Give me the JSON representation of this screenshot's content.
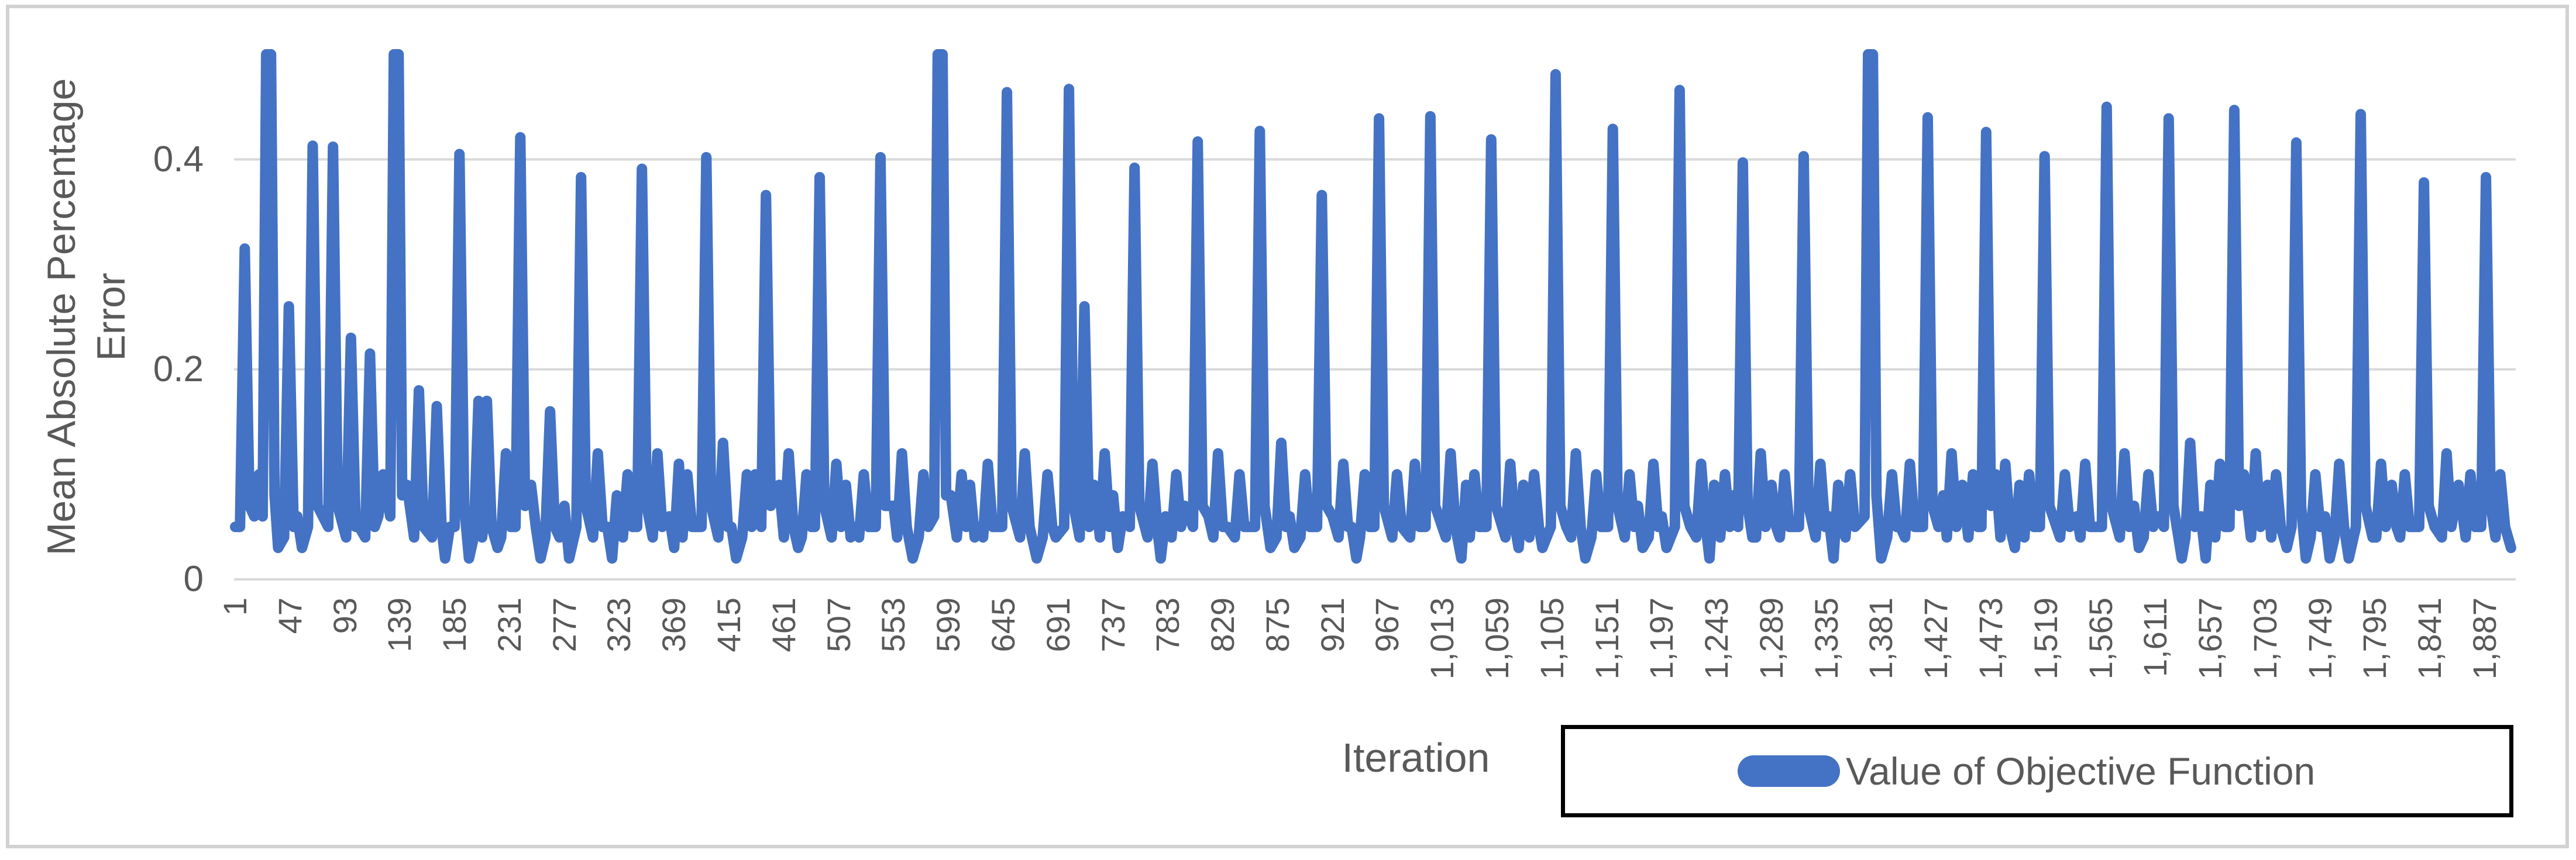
{
  "chart_data": {
    "type": "line",
    "title": "",
    "xlabel": "Iteration",
    "ylabel": "Mean Absolute Percentage Error",
    "ylabel_lines": [
      "Mean Absolute Percentage",
      "Error"
    ],
    "grid": true,
    "legend": {
      "position": "bottom-right",
      "border_color": "#000000",
      "entries": [
        {
          "label": "Value of Objective Function",
          "color": "#4472C4"
        }
      ]
    },
    "colors": {
      "series_blue": "#4472C4",
      "gridline": "#D9D9D9",
      "axis_text": "#595959",
      "frame_border": "#D2D2D2",
      "background": "#FFFFFF"
    },
    "y_axis": {
      "min": 0,
      "max": 0.5,
      "major_unit": 0.2,
      "tick_values": [
        0,
        0.2,
        0.4
      ],
      "tick_labels": [
        "0",
        "0.2",
        "0.4"
      ]
    },
    "x_axis": {
      "max_iteration": 1912,
      "tick_values": [
        1,
        47,
        93,
        139,
        185,
        231,
        277,
        323,
        369,
        415,
        461,
        507,
        553,
        599,
        645,
        691,
        737,
        783,
        829,
        875,
        921,
        967,
        1013,
        1059,
        1105,
        1151,
        1197,
        1243,
        1289,
        1335,
        1381,
        1427,
        1473,
        1519,
        1565,
        1611,
        1657,
        1703,
        1749,
        1795,
        1841,
        1887
      ],
      "tick_labels": [
        "1",
        "47",
        "93",
        "139",
        "185",
        "231",
        "277",
        "323",
        "369",
        "415",
        "461",
        "507",
        "553",
        "599",
        "645",
        "691",
        "737",
        "783",
        "829",
        "875",
        "921",
        "967",
        "1,013",
        "1,059",
        "1,105",
        "1,151",
        "1,197",
        "1,243",
        "1,289",
        "1,335",
        "1,381",
        "1,427",
        "1,473",
        "1,519",
        "1,565",
        "1,611",
        "1,657",
        "1,703",
        "1,749",
        "1,795",
        "1,841",
        "1,887"
      ]
    },
    "series": [
      {
        "name": "Value of Objective Function",
        "color": "#4472C4",
        "clip_max": 0.5,
        "spikes": [
          [
            9,
            0.315
          ],
          [
            29,
            0.505
          ],
          [
            66,
            0.413
          ],
          [
            83,
            0.412
          ],
          [
            136,
            0.505
          ],
          [
            189,
            0.405
          ],
          [
            240,
            0.421
          ],
          [
            291,
            0.383
          ],
          [
            342,
            0.391
          ],
          [
            396,
            0.402
          ],
          [
            446,
            0.366
          ],
          [
            491,
            0.383
          ],
          [
            542,
            0.402
          ],
          [
            592,
            0.505
          ],
          [
            648,
            0.464
          ],
          [
            700,
            0.467
          ],
          [
            755,
            0.392
          ],
          [
            808,
            0.417
          ],
          [
            860,
            0.427
          ],
          [
            912,
            0.366
          ],
          [
            960,
            0.439
          ],
          [
            1003,
            0.441
          ],
          [
            1054,
            0.419
          ],
          [
            1108,
            0.481
          ],
          [
            1156,
            0.429
          ],
          [
            1212,
            0.466
          ],
          [
            1265,
            0.397
          ],
          [
            1316,
            0.403
          ],
          [
            1372,
            0.505
          ],
          [
            1420,
            0.44
          ],
          [
            1469,
            0.426
          ],
          [
            1518,
            0.403
          ],
          [
            1570,
            0.45
          ],
          [
            1622,
            0.439
          ],
          [
            1677,
            0.447
          ],
          [
            1729,
            0.416
          ],
          [
            1783,
            0.443
          ],
          [
            1836,
            0.378
          ],
          [
            1888,
            0.383
          ]
        ],
        "bumps": [
          [
            46,
            0.26
          ],
          [
            98,
            0.23
          ],
          [
            114,
            0.215
          ],
          [
            155,
            0.18
          ],
          [
            170,
            0.165
          ],
          [
            205,
            0.17
          ],
          [
            212,
            0.17
          ],
          [
            228,
            0.12
          ],
          [
            265,
            0.16
          ],
          [
            305,
            0.12
          ],
          [
            330,
            0.1
          ],
          [
            355,
            0.12
          ],
          [
            380,
            0.1
          ],
          [
            410,
            0.13
          ],
          [
            430,
            0.1
          ],
          [
            465,
            0.12
          ],
          [
            480,
            0.1
          ],
          [
            505,
            0.11
          ],
          [
            528,
            0.1
          ],
          [
            560,
            0.12
          ],
          [
            578,
            0.1
          ],
          [
            610,
            0.1
          ],
          [
            632,
            0.11
          ],
          [
            663,
            0.12
          ],
          [
            682,
            0.1
          ],
          [
            713,
            0.26
          ],
          [
            730,
            0.12
          ],
          [
            770,
            0.11
          ],
          [
            790,
            0.1
          ],
          [
            825,
            0.12
          ],
          [
            843,
            0.1
          ],
          [
            878,
            0.13
          ],
          [
            898,
            0.1
          ],
          [
            930,
            0.11
          ],
          [
            948,
            0.1
          ],
          [
            975,
            0.1
          ],
          [
            990,
            0.11
          ],
          [
            1020,
            0.12
          ],
          [
            1040,
            0.1
          ],
          [
            1070,
            0.11
          ],
          [
            1090,
            0.1
          ],
          [
            1125,
            0.12
          ],
          [
            1142,
            0.1
          ],
          [
            1170,
            0.1
          ],
          [
            1190,
            0.11
          ],
          [
            1230,
            0.11
          ],
          [
            1250,
            0.1
          ],
          [
            1280,
            0.12
          ],
          [
            1300,
            0.1
          ],
          [
            1330,
            0.11
          ],
          [
            1355,
            0.1
          ],
          [
            1390,
            0.1
          ],
          [
            1405,
            0.11
          ],
          [
            1440,
            0.12
          ],
          [
            1458,
            0.1
          ],
          [
            1485,
            0.11
          ],
          [
            1505,
            0.1
          ],
          [
            1535,
            0.1
          ],
          [
            1552,
            0.11
          ],
          [
            1585,
            0.12
          ],
          [
            1605,
            0.1
          ],
          [
            1640,
            0.13
          ],
          [
            1665,
            0.11
          ],
          [
            1695,
            0.12
          ],
          [
            1712,
            0.1
          ],
          [
            1745,
            0.1
          ],
          [
            1765,
            0.11
          ],
          [
            1800,
            0.11
          ],
          [
            1820,
            0.1
          ],
          [
            1855,
            0.12
          ],
          [
            1875,
            0.1
          ],
          [
            1900,
            0.1
          ]
        ],
        "baseline_noise_pattern": [
          0.05,
          0.02,
          0.08,
          0.03,
          0.06,
          0.1,
          0.04,
          0.02,
          0.07,
          0.03,
          0.09,
          0.05,
          0.02,
          0.06,
          0.03,
          0.11,
          0.04,
          0.07,
          0.02,
          0.05,
          0.08,
          0.03,
          0.06,
          0.02,
          0.09,
          0.04
        ],
        "noise_anchor_step": 4
      }
    ]
  }
}
